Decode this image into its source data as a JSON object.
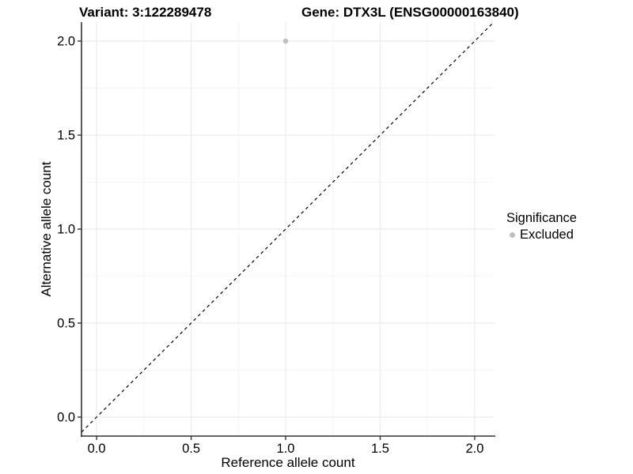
{
  "chart_data": {
    "type": "scatter",
    "title_variant": "Variant: 3:122289478",
    "title_gene": "Gene: DTX3L (ENSG00000163840)",
    "xlabel": "Reference allele count",
    "ylabel": "Alternative allele count",
    "xlim": [
      -0.08,
      2.105
    ],
    "ylim": [
      -0.101,
      2.101
    ],
    "x_ticks": [
      0.0,
      0.5,
      1.0,
      1.5,
      2.0
    ],
    "y_ticks": [
      0.0,
      0.5,
      1.0,
      1.5,
      2.0
    ],
    "x_minor_ticks": [
      0.25,
      0.75,
      1.25,
      1.75
    ],
    "y_minor_ticks": [
      0.25,
      0.75,
      1.25,
      1.75
    ],
    "tick_decimals": 1,
    "grid": true,
    "identity_line": {
      "slope": 1,
      "intercept": 0,
      "style": "dashed",
      "color": "#000000"
    },
    "series": [
      {
        "name": "Excluded",
        "color": "#bebebe",
        "points": [
          {
            "x": 1.0,
            "y": 2.0
          }
        ]
      }
    ],
    "legend": {
      "title": "Significance",
      "position": "right",
      "items": [
        {
          "label": "Excluded",
          "color": "#bebebe"
        }
      ]
    },
    "colors": {
      "grid_major": "#ebebeb",
      "grid_minor": "#f4f4f4",
      "axis_line": "#333333",
      "text": "#000000",
      "point": "#bebebe"
    }
  }
}
